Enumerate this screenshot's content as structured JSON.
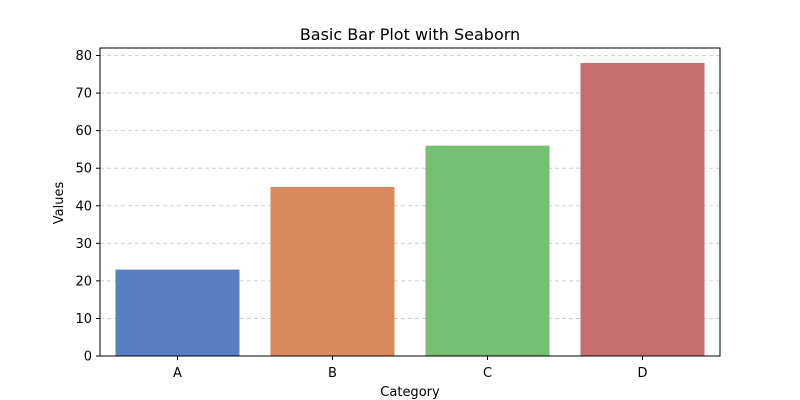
{
  "chart_data": {
    "type": "bar",
    "title": "Basic Bar Plot with Seaborn",
    "xlabel": "Category",
    "ylabel": "Values",
    "categories": [
      "A",
      "B",
      "C",
      "D"
    ],
    "values": [
      23,
      45,
      56,
      78
    ],
    "colors": [
      "#5a7ec3",
      "#d9895d",
      "#75c171",
      "#c66e6d"
    ],
    "ylim": [
      0,
      82
    ],
    "yticks": [
      0,
      10,
      20,
      30,
      40,
      50,
      60,
      70,
      80
    ],
    "grid": "y-dashed",
    "legend": "none"
  }
}
